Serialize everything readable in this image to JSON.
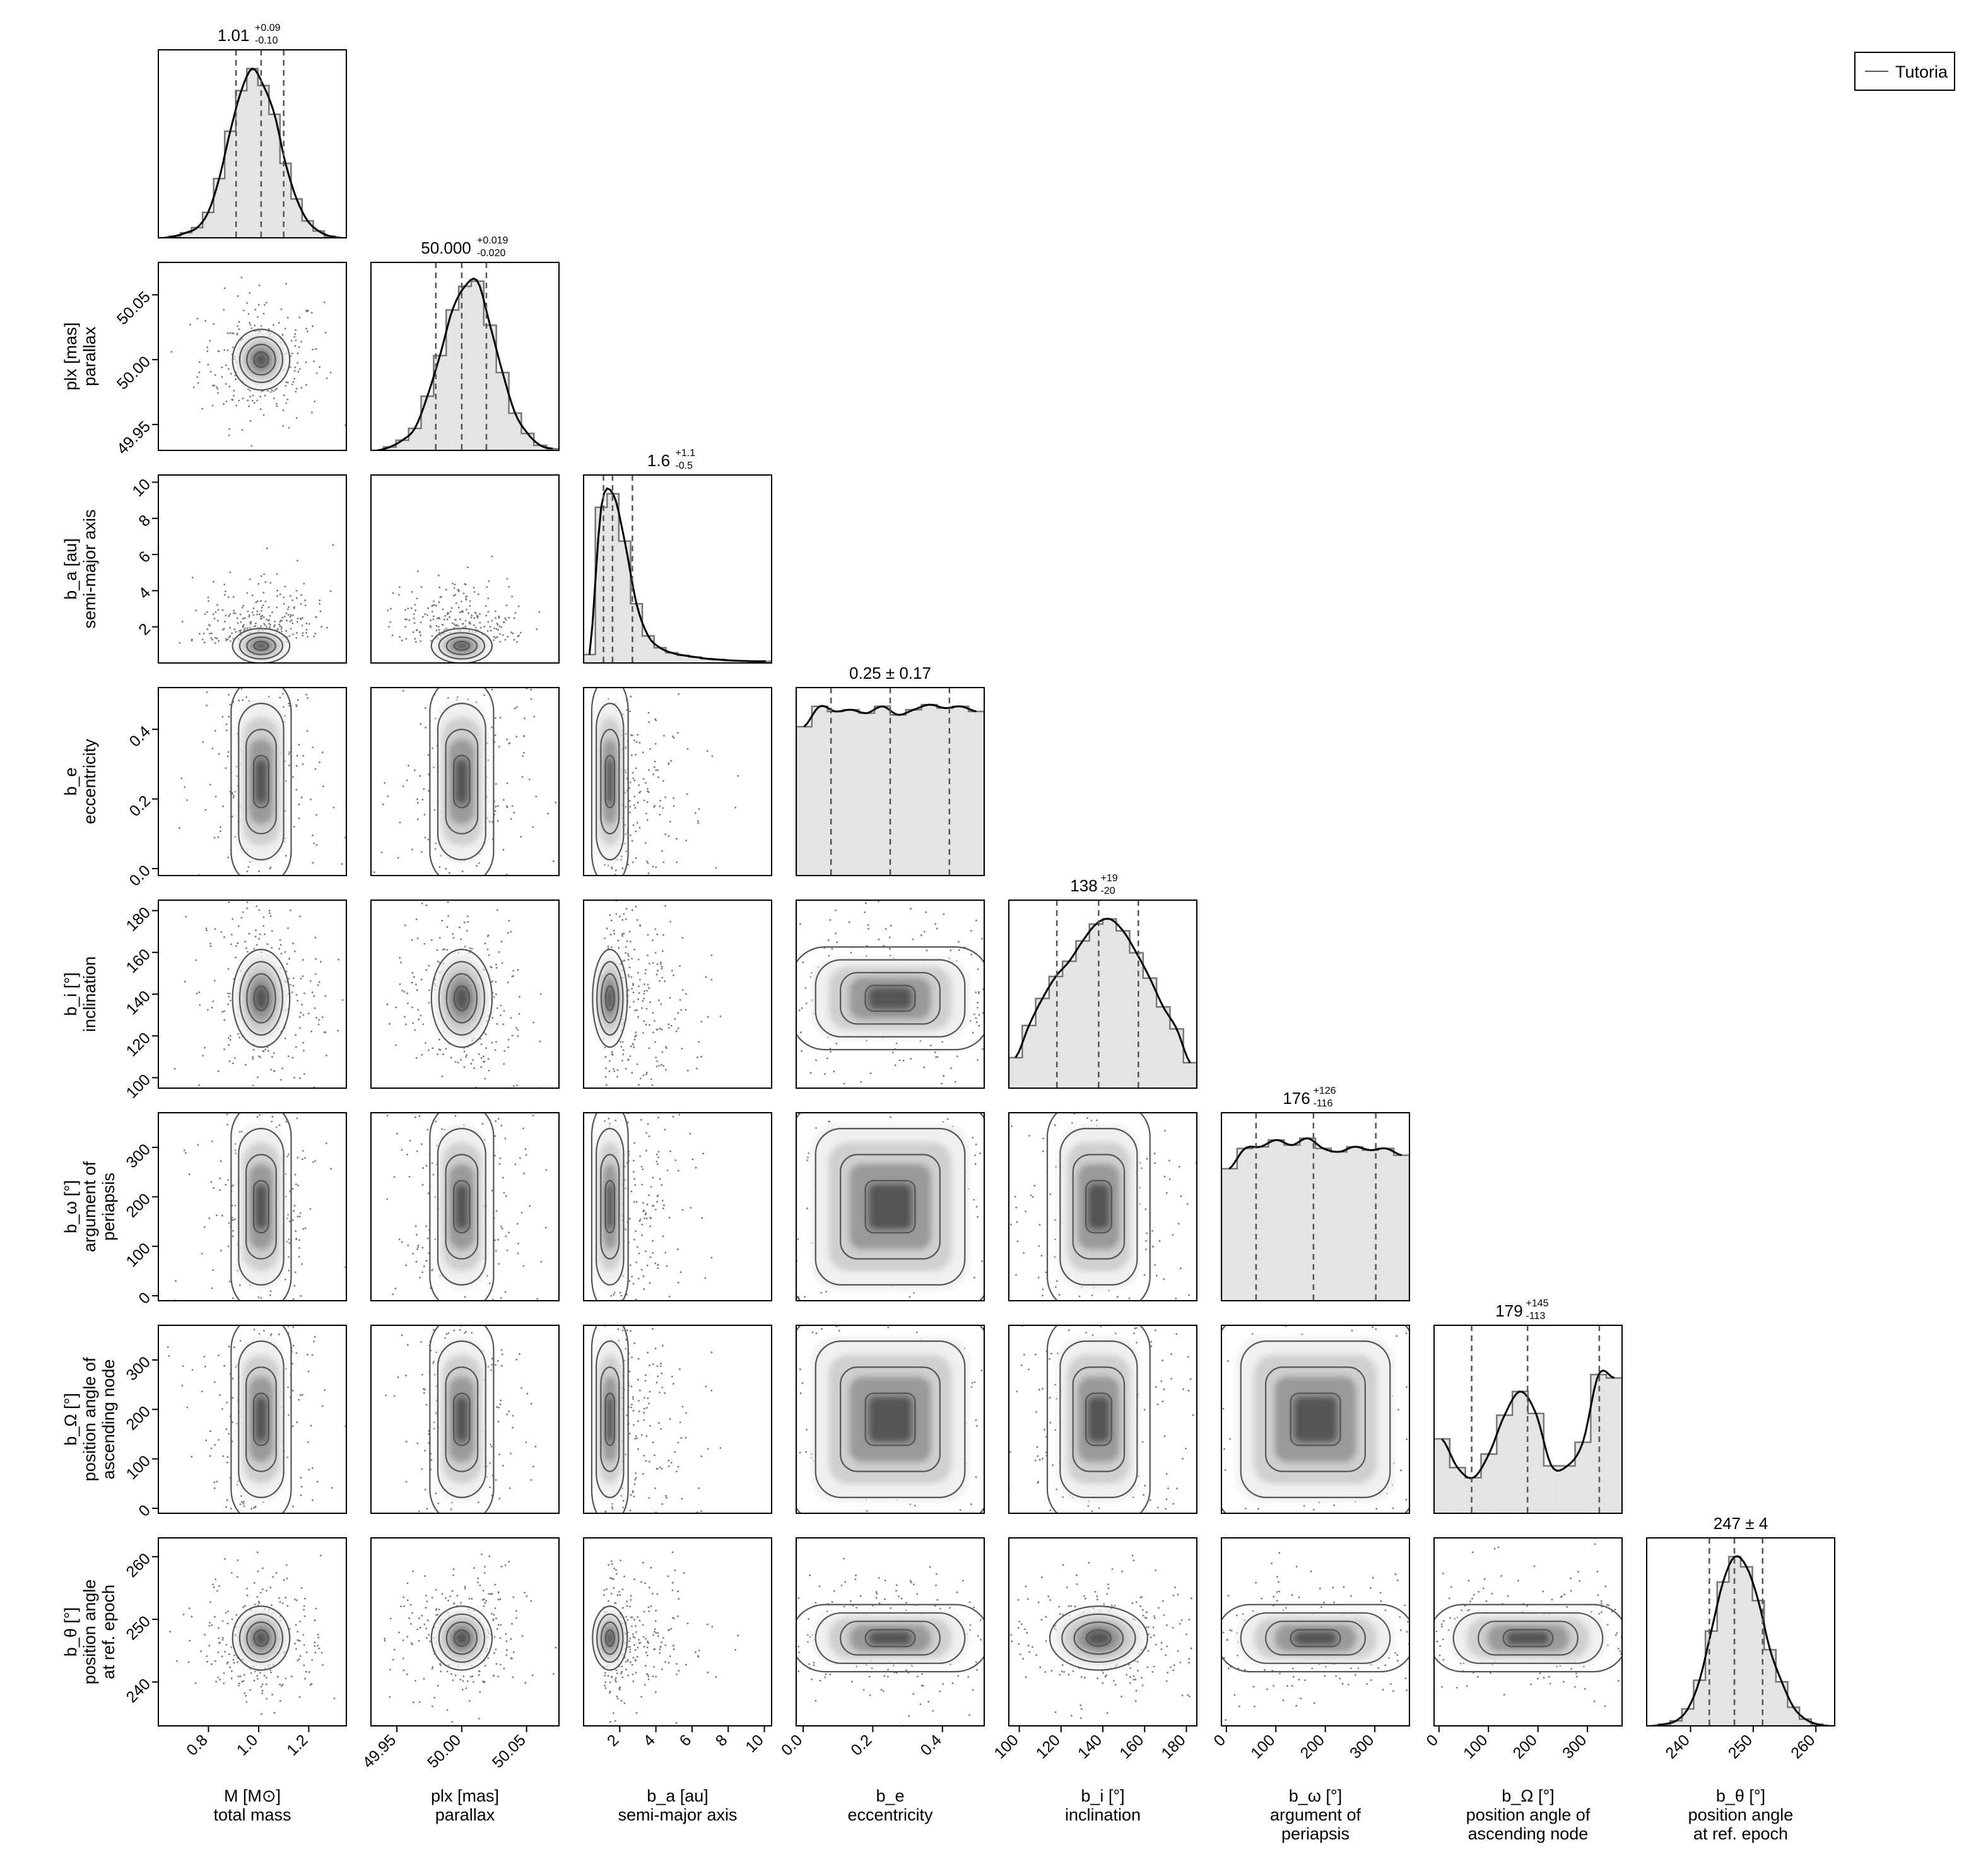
{
  "chart_data": {
    "type": "corner",
    "grid": false,
    "legend": {
      "position": "top-right",
      "entries": [
        "Tutoria"
      ]
    },
    "parameters": [
      {
        "id": "M",
        "label": "M [M⊙]",
        "desc": "total mass",
        "lim": [
          0.6,
          1.35
        ],
        "ticks": [
          0.8,
          1.0,
          1.2
        ],
        "tickLabels": [
          "0.8",
          "1.0",
          "1.2"
        ],
        "summary": {
          "median": "1.01",
          "plus": "+0.09",
          "minus": "-0.10"
        },
        "q": [
          0.91,
          1.01,
          1.1
        ],
        "hist": [
          0,
          0.01,
          0.03,
          0.06,
          0.15,
          0.35,
          0.63,
          0.87,
          1.0,
          0.9,
          0.73,
          0.44,
          0.23,
          0.1,
          0.04,
          0.01,
          0
        ]
      },
      {
        "id": "plx",
        "label": "plx [mas]",
        "desc": "parallax",
        "lim": [
          49.93,
          50.075
        ],
        "ticks": [
          49.95,
          50.0,
          50.05
        ],
        "tickLabels": [
          "49.95",
          "50.00",
          "50.05"
        ],
        "summary": {
          "median": "50.000",
          "plus": "+0.019",
          "minus": "-0.020"
        },
        "q": [
          49.98,
          50.0,
          50.019
        ],
        "hist": [
          0,
          0.02,
          0.06,
          0.13,
          0.32,
          0.56,
          0.83,
          0.97,
          1.0,
          0.74,
          0.46,
          0.22,
          0.1,
          0.03,
          0.01
        ]
      },
      {
        "id": "b_a",
        "label": "b_a [au]",
        "desc": "semi-major axis",
        "lim": [
          0,
          10.4
        ],
        "ticks": [
          2,
          4,
          6,
          8,
          10
        ],
        "tickLabels": [
          "2",
          "4",
          "6",
          "8",
          "10"
        ],
        "summary": {
          "median": "1.6",
          "plus": "+1.1",
          "minus": "-0.5"
        },
        "q": [
          1.1,
          1.6,
          2.7
        ],
        "hist": [
          0.05,
          0.92,
          1.0,
          0.72,
          0.35,
          0.16,
          0.09,
          0.06,
          0.045,
          0.035,
          0.025,
          0.02,
          0.015,
          0.012,
          0.01,
          0.01
        ]
      },
      {
        "id": "b_e",
        "label": "b_e",
        "desc": "eccentricity",
        "lim": [
          -0.02,
          0.52
        ],
        "ticks": [
          0.0,
          0.2,
          0.4
        ],
        "tickLabels": [
          "0.0",
          "0.2",
          "0.4"
        ],
        "summary": {
          "text": "0.25 ± 0.17"
        },
        "q": [
          0.08,
          0.25,
          0.42
        ],
        "hist": [
          0.88,
          1.0,
          0.97,
          0.98,
          0.96,
          1.0,
          0.95,
          0.98,
          1.01,
          0.99,
          1.0,
          0.97
        ]
      },
      {
        "id": "b_i",
        "label": "b_i [°]",
        "desc": "inclination",
        "lim": [
          95,
          185
        ],
        "ticks": [
          100,
          120,
          140,
          160,
          180
        ],
        "tickLabels": [
          "100",
          "120",
          "140",
          "160",
          "180"
        ],
        "summary": {
          "median": "138",
          "plus": "+19",
          "minus": "-20"
        },
        "q": [
          118,
          138,
          157
        ],
        "hist": [
          0.18,
          0.37,
          0.53,
          0.66,
          0.75,
          0.87,
          0.97,
          1.0,
          0.93,
          0.8,
          0.65,
          0.48,
          0.35,
          0.15
        ]
      },
      {
        "id": "b_omega",
        "label": "b_ω [°]",
        "desc": "argument of periapsis",
        "lim": [
          -10,
          370
        ],
        "ticks": [
          0,
          100,
          200,
          300
        ],
        "tickLabels": [
          "0",
          "100",
          "200",
          "300"
        ],
        "summary": {
          "median": "176",
          "plus": "+126",
          "minus": "-116"
        },
        "q": [
          60,
          176,
          302
        ],
        "hist": [
          0.78,
          0.9,
          0.91,
          0.95,
          0.92,
          0.96,
          0.9,
          0.88,
          0.91,
          0.89,
          0.9,
          0.86
        ]
      },
      {
        "id": "b_Omega",
        "label": "b_Ω [°]",
        "desc": "position angle of ascending node",
        "lim": [
          -10,
          370
        ],
        "ticks": [
          0,
          100,
          200,
          300
        ],
        "tickLabels": [
          "0",
          "100",
          "200",
          "300"
        ],
        "summary": {
          "median": "179",
          "plus": "+145",
          "minus": "-113"
        },
        "q": [
          66,
          179,
          324
        ],
        "hist": [
          0.44,
          0.27,
          0.21,
          0.35,
          0.58,
          0.72,
          0.59,
          0.28,
          0.28,
          0.42,
          0.82,
          0.8
        ]
      },
      {
        "id": "b_theta",
        "label": "b_θ [°]",
        "desc": "position angle at ref. epoch",
        "lim": [
          233,
          263
        ],
        "ticks": [
          240,
          250,
          260
        ],
        "tickLabels": [
          "240",
          "250",
          "260"
        ],
        "summary": {
          "text": "247 ± 4"
        },
        "q": [
          243,
          247,
          251.5
        ],
        "hist": [
          0,
          0.01,
          0.03,
          0.1,
          0.27,
          0.56,
          0.85,
          1.0,
          0.94,
          0.74,
          0.45,
          0.26,
          0.11,
          0.04,
          0.01,
          0
        ]
      }
    ]
  }
}
